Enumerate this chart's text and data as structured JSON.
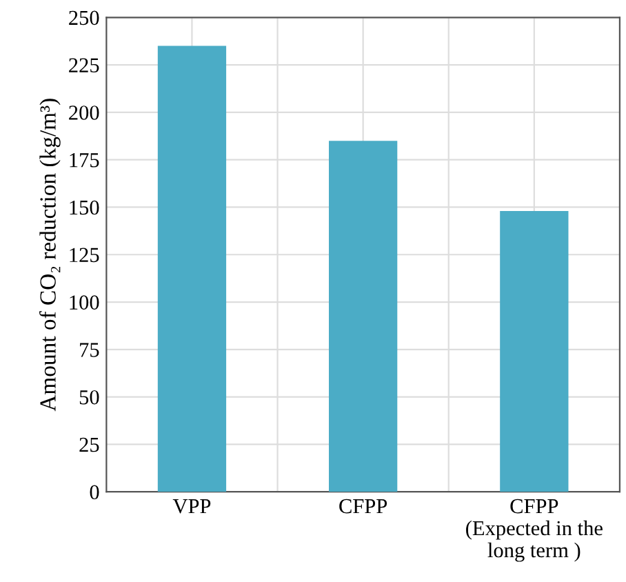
{
  "chart_data": {
    "type": "bar",
    "ylabel": "Amount of CO₂ reduction (kg/m³)",
    "categories": [
      "VPP",
      "CFPP",
      "CFPP\n(Expected in the\nlong term )"
    ],
    "values": [
      235,
      185,
      148
    ],
    "color": "#4bacc6",
    "ylim": [
      0,
      250
    ],
    "yticks": [
      0,
      25,
      50,
      75,
      100,
      125,
      150,
      175,
      200,
      225,
      250
    ],
    "grid": true
  }
}
